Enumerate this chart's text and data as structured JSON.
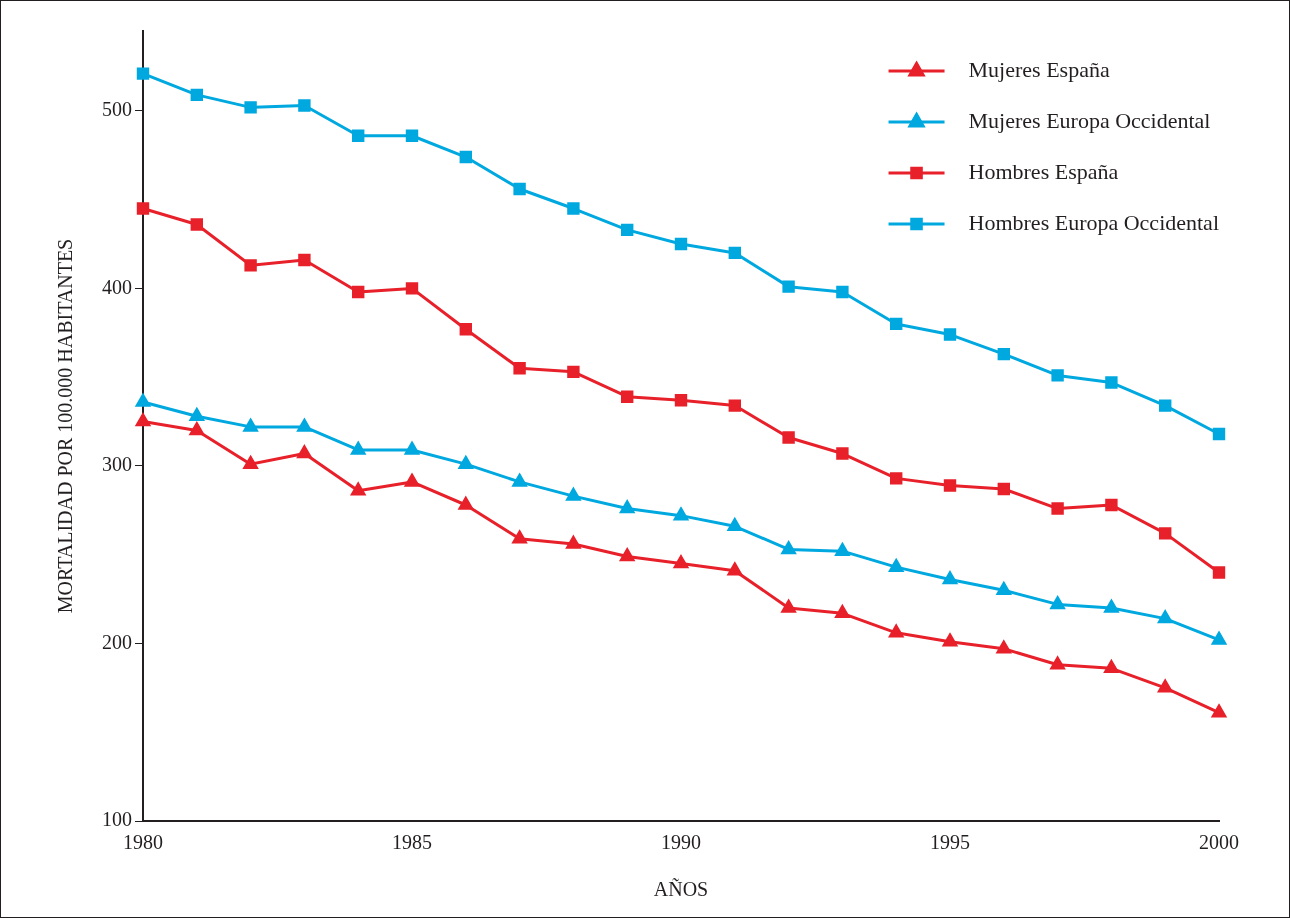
{
  "chart_data": {
    "type": "line",
    "xlabel": "AÑOS",
    "ylabel": "MORTALIDAD POR 100.000 HABITANTES",
    "x": [
      1980,
      1981,
      1982,
      1983,
      1984,
      1985,
      1986,
      1987,
      1988,
      1989,
      1990,
      1991,
      1992,
      1993,
      1994,
      1995,
      1996,
      1997,
      1998,
      1999,
      2000
    ],
    "xlim": [
      1980,
      2000
    ],
    "xticks": [
      1980,
      1985,
      1990,
      1995,
      2000
    ],
    "ylim": [
      100,
      545
    ],
    "yticks": [
      100,
      200,
      300,
      400,
      500
    ],
    "grid": false,
    "legend": "top right",
    "line_style": "solid",
    "series": [
      {
        "name": "Mujeres España",
        "color": "#e8202a",
        "marker": "triangle",
        "values": [
          325,
          320,
          301,
          307,
          286,
          291,
          278,
          259,
          256,
          249,
          245,
          241,
          220,
          217,
          206,
          201,
          197,
          188,
          186,
          175,
          161
        ]
      },
      {
        "name": "Mujeres Europa Occidental",
        "color": "#00a8e0",
        "marker": "triangle",
        "values": [
          336,
          328,
          322,
          322,
          309,
          309,
          301,
          291,
          283,
          276,
          272,
          266,
          253,
          252,
          243,
          236,
          230,
          222,
          220,
          214,
          202
        ]
      },
      {
        "name": "Hombres España",
        "color": "#e8202a",
        "marker": "square",
        "values": [
          445,
          436,
          413,
          416,
          398,
          400,
          377,
          355,
          353,
          339,
          337,
          334,
          316,
          307,
          293,
          289,
          287,
          276,
          278,
          262,
          240
        ]
      },
      {
        "name": "Hombres Europa Occidental",
        "color": "#00a8e0",
        "marker": "square",
        "values": [
          521,
          509,
          502,
          503,
          486,
          486,
          474,
          456,
          445,
          433,
          425,
          420,
          401,
          398,
          380,
          374,
          363,
          351,
          347,
          334,
          318
        ]
      }
    ]
  }
}
